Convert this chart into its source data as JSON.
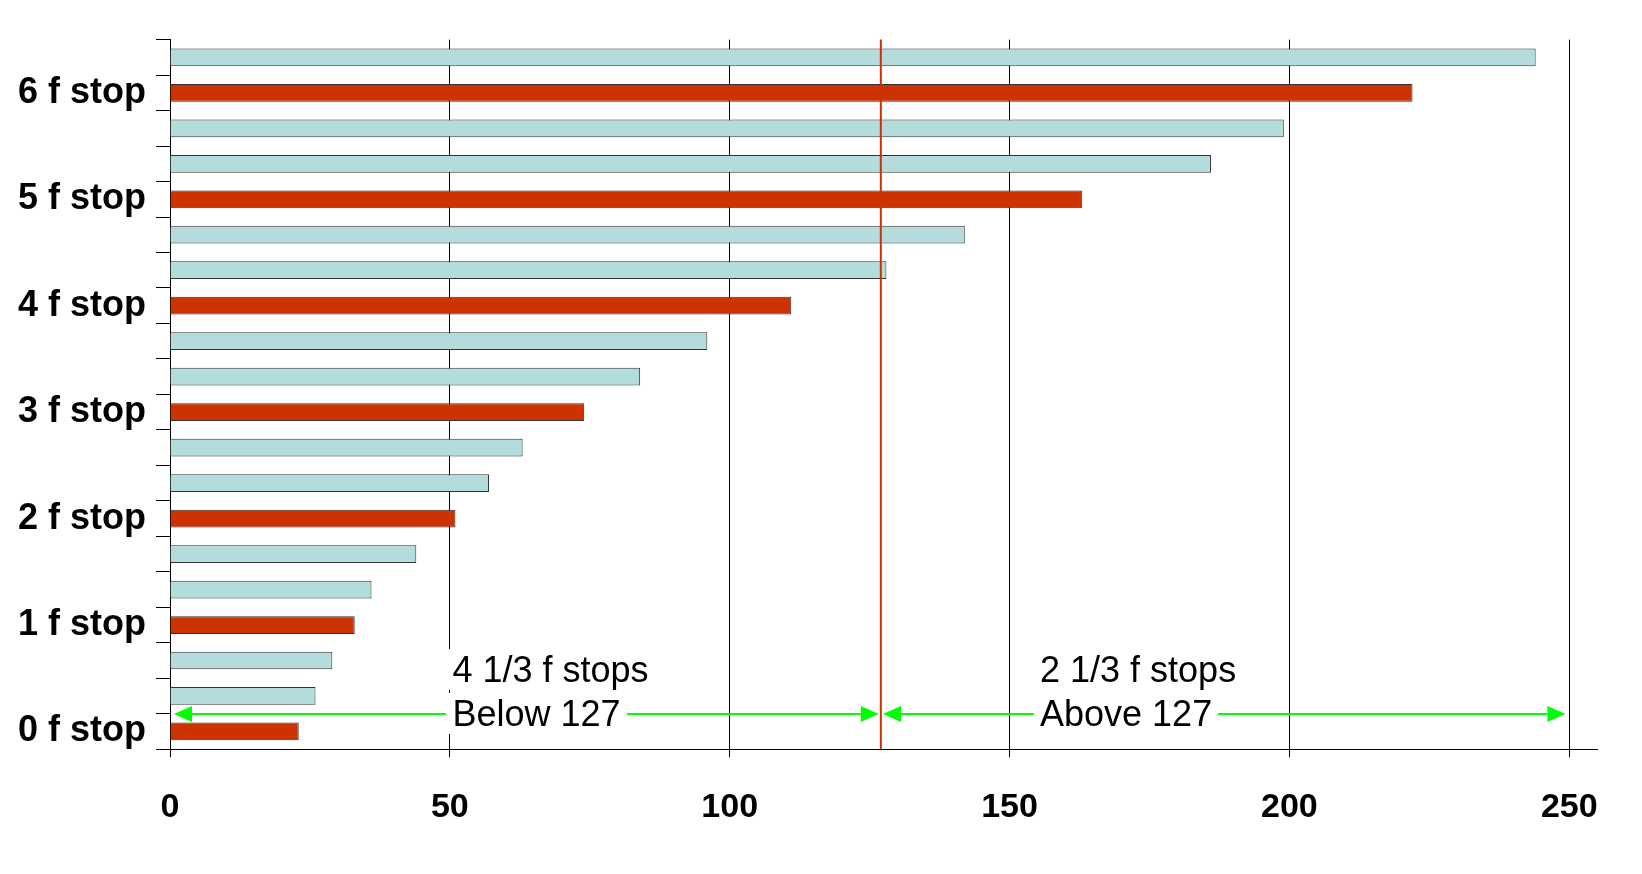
{
  "chart_data": {
    "type": "bar",
    "orientation": "horizontal",
    "categories": [
      null,
      "6 f stop",
      null,
      null,
      "5 f stop",
      null,
      null,
      "4 f stop",
      null,
      null,
      "3 f stop",
      null,
      null,
      "2 f stop",
      null,
      null,
      "1 f stop",
      null,
      null,
      "0 f stop"
    ],
    "values": [
      244,
      222,
      199,
      186,
      163,
      142,
      128,
      111,
      96,
      84,
      74,
      63,
      57,
      51,
      44,
      36,
      33,
      29,
      26,
      23
    ],
    "colors": [
      "#b4dcdc",
      "#cc3300",
      "#b4dcdc",
      "#b4dcdc",
      "#cc3300",
      "#b4dcdc",
      "#b4dcdc",
      "#cc3300",
      "#b4dcdc",
      "#b4dcdc",
      "#cc3300",
      "#b4dcdc",
      "#b4dcdc",
      "#cc3300",
      "#b4dcdc",
      "#b4dcdc",
      "#cc3300",
      "#b4dcdc",
      "#b4dcdc",
      "#cc3300"
    ],
    "xlim": [
      0,
      255
    ],
    "xticks": [
      0,
      50,
      100,
      150,
      200,
      250
    ],
    "grid": "x",
    "legend": false,
    "ref_lines": [
      {
        "axis": "x",
        "value": 127,
        "color": "#cc3300"
      }
    ],
    "annotations": [
      "4 1/3 f stops\nBelow 127",
      "2 1/3 f stops\nAbove 127"
    ]
  }
}
